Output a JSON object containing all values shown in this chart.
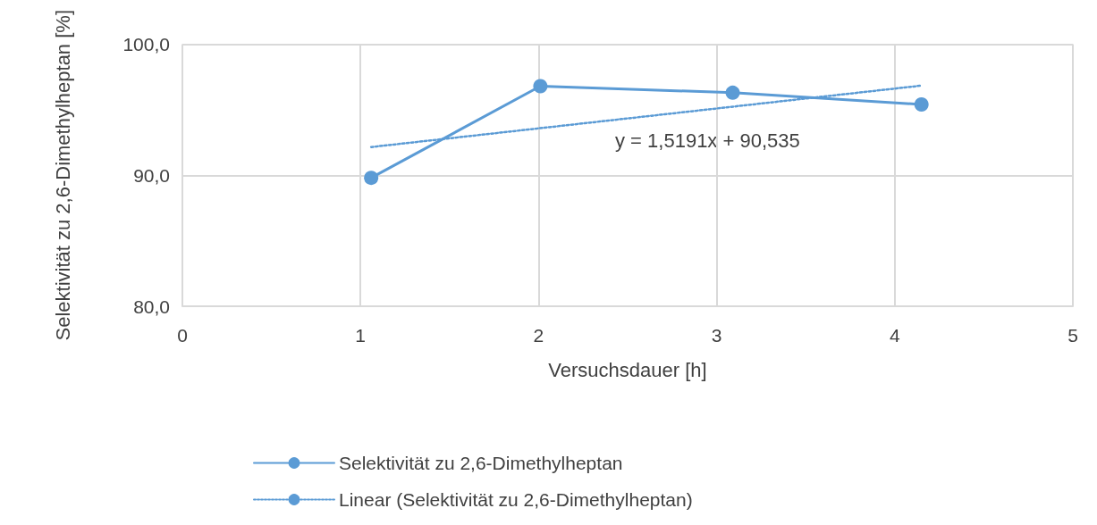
{
  "chart_data": {
    "type": "line",
    "xlabel": "Versuchsdauer [h]",
    "ylabel": "Selektivität zu 2,6-Dimethylheptan [%]",
    "xlim": [
      0,
      5
    ],
    "xticks": [
      0,
      1,
      2,
      3,
      4,
      5
    ],
    "ylim": [
      80,
      100
    ],
    "yticks": [
      {
        "value": 80,
        "label": "80,0"
      },
      {
        "value": 90,
        "label": "90,0"
      },
      {
        "value": 100,
        "label": "100,0"
      }
    ],
    "series": [
      {
        "name": "Selektivität zu 2,6-Dimethylheptan",
        "color": "#5b9bd5",
        "x": [
          1.06,
          2.01,
          3.09,
          4.15
        ],
        "values": [
          89.8,
          96.8,
          96.3,
          95.4
        ],
        "marker": "circle",
        "line_style": "solid"
      },
      {
        "name": "Linear (Selektivität zu 2,6-Dimethylheptan)",
        "color": "#5b9bd5",
        "x": [
          1.06,
          4.15
        ],
        "values": [
          92.15,
          96.84
        ],
        "marker": "none",
        "line_style": "dotted"
      }
    ],
    "annotations": [
      "y = 1,5191x + 90,535"
    ],
    "grid": true,
    "legend": "bottom"
  }
}
